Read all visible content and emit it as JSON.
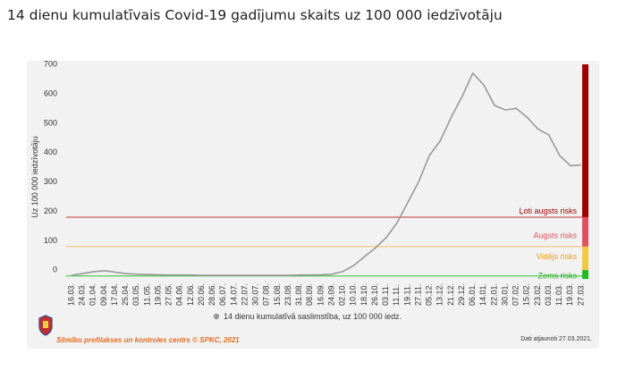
{
  "title": "14 dienu kumulatīvais Covid-19 gadījumu skaits uz 100 000 iedzīvotāju",
  "footer": {
    "source": "Slimību profilakses un kontroles centrs © SPKC, 2021",
    "updated": "Dati atjaunoti 27.03.2021."
  },
  "colors": {
    "line": "#999999",
    "very_high": "#a00000",
    "high": "#e05060",
    "medium": "#f5c842",
    "low": "#22bb22",
    "high_line": "#c03030",
    "medium_line": "#f2c060",
    "low_line": "#30c030"
  },
  "chart_data": {
    "type": "line",
    "title": "14 dienu kumulatīvais Covid-19 gadījumu skaits uz 100 000 iedzīvotāju",
    "ylabel": "Uz 100 000 iedzīvotāju",
    "xlabel": "",
    "ylim": [
      -10,
      720
    ],
    "yticks": [
      0,
      100,
      200,
      300,
      400,
      500,
      600,
      700
    ],
    "grid": false,
    "legend": "bottom-center",
    "x_tick_labels": [
      "16.03.",
      "24.03.",
      "01.04.",
      "09.04.",
      "17.04.",
      "25.04.",
      "03.05.",
      "11.05.",
      "19.05.",
      "27.05.",
      "04.06.",
      "12.06.",
      "20.06.",
      "28.06.",
      "06.07.",
      "14.07.",
      "22.07.",
      "30.07.",
      "07.08.",
      "15.08.",
      "23.08.",
      "31.08.",
      "08.09.",
      "16.09.",
      "24.09.",
      "02.10.",
      "10.10.",
      "18.10.",
      "26.10.",
      "03.11.",
      "11.11.",
      "19.11.",
      "27.11.",
      "05.12.",
      "13.12.",
      "21.12.",
      "29.12.",
      "06.01.",
      "14.01.",
      "22.01.",
      "30.01.",
      "07.02.",
      "15.02.",
      "23.02.",
      "03.03.",
      "11.03.",
      "19.03.",
      "27.03."
    ],
    "series": [
      {
        "name": "14 dienu kumulatīvā saslimstība, uz 100 000 iedz.",
        "values": [
          2,
          8,
          14,
          18,
          13,
          8,
          6,
          5,
          4,
          3,
          3,
          3,
          2,
          2,
          2,
          2,
          2,
          2,
          2,
          2,
          2,
          3,
          3,
          4,
          6,
          15,
          35,
          65,
          95,
          130,
          180,
          250,
          320,
          410,
          460,
          540,
          610,
          690,
          650,
          580,
          565,
          570,
          540,
          500,
          480,
          410,
          375,
          378
        ]
      }
    ],
    "thresholds": [
      {
        "label": "Ļoti augsts risks",
        "value": 200
      },
      {
        "label": "Augsts risks",
        "value": 100
      },
      {
        "label": "Vidējs risks",
        "value": 20
      },
      {
        "label": "Zems risks",
        "value": 0
      }
    ]
  }
}
